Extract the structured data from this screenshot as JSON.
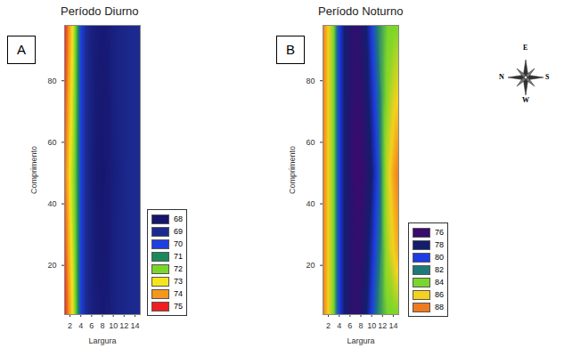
{
  "chart_data": [
    {
      "type": "heatmap",
      "title": "Período Diurno",
      "annotations": [
        "A"
      ],
      "xlabel": "Largura",
      "ylabel": "Comprimento",
      "xlim": [
        1,
        15
      ],
      "ylim": [
        4,
        98
      ],
      "xticks": [
        2,
        4,
        6,
        8,
        10,
        12,
        14
      ],
      "yticks": [
        20,
        40,
        60,
        80
      ],
      "x": [
        1,
        2,
        3,
        4,
        5,
        6,
        7,
        8,
        9,
        10,
        11,
        12,
        13,
        14,
        15
      ],
      "y": [
        4,
        25,
        50,
        75,
        98
      ],
      "z": [
        [
          75,
          73.8,
          72,
          70,
          69,
          68.5,
          68.3,
          68.2,
          68.3,
          68.5,
          68.7,
          68.8,
          68.9,
          69,
          69
        ],
        [
          74.8,
          73.4,
          71.9,
          70,
          69,
          68.5,
          68.2,
          68.1,
          68.2,
          68.5,
          68.7,
          68.8,
          68.9,
          69,
          69
        ],
        [
          74.5,
          73,
          71.8,
          70,
          69,
          68.4,
          68.1,
          68,
          68.2,
          68.4,
          68.6,
          68.8,
          68.9,
          69,
          69
        ],
        [
          74.8,
          73.4,
          71.9,
          70,
          69,
          68.5,
          68.2,
          68.1,
          68.2,
          68.5,
          68.7,
          68.8,
          68.9,
          69,
          69
        ],
        [
          75,
          73.8,
          72,
          70,
          69,
          68.5,
          68.3,
          68.2,
          68.3,
          68.5,
          68.7,
          68.8,
          68.9,
          69,
          69
        ]
      ],
      "colorbar": {
        "values": [
          68,
          69,
          70,
          71,
          72,
          73,
          74,
          75
        ],
        "colors": [
          "#16166e",
          "#1c2a90",
          "#1f3fe0",
          "#1a8a5a",
          "#7ad62a",
          "#f5e51e",
          "#f5961e",
          "#f01e1e"
        ]
      }
    },
    {
      "type": "heatmap",
      "title": "Período Noturno",
      "annotations": [
        "B",
        "E",
        "N",
        "S",
        "W"
      ],
      "xlabel": "Largura",
      "ylabel": "Comprimento",
      "xlim": [
        1,
        15
      ],
      "ylim": [
        4,
        98
      ],
      "xticks": [
        2,
        4,
        6,
        8,
        10,
        12,
        14
      ],
      "yticks": [
        20,
        40,
        60,
        80
      ],
      "x": [
        1,
        2,
        3,
        4,
        5,
        6,
        7,
        8,
        9,
        10,
        11,
        12,
        13,
        14,
        15
      ],
      "y": [
        4,
        25,
        50,
        75,
        98
      ],
      "z": [
        [
          88,
          86,
          84,
          80,
          78,
          77,
          76.5,
          77,
          78,
          80,
          82,
          83,
          84,
          84,
          84
        ],
        [
          88,
          86,
          84,
          80,
          78,
          77,
          76.5,
          76.5,
          77.5,
          79,
          81,
          83,
          85,
          86,
          87
        ],
        [
          88,
          86,
          84,
          80,
          78,
          77,
          76,
          76,
          77,
          78,
          80,
          83,
          85.5,
          87,
          88
        ],
        [
          88,
          86,
          84,
          80,
          78,
          77,
          76.5,
          76.5,
          77.5,
          79,
          81,
          83,
          84.5,
          85.5,
          86
        ],
        [
          88,
          86,
          84,
          80,
          78,
          77,
          76.5,
          77,
          78,
          80,
          82,
          83,
          84,
          84,
          84
        ]
      ],
      "colorbar": {
        "values": [
          76,
          78,
          80,
          82,
          84,
          86,
          88
        ],
        "colors": [
          "#3a0a6e",
          "#141e6e",
          "#1e3ce6",
          "#1e7a7a",
          "#7ad62a",
          "#f5d21e",
          "#f07a1e"
        ]
      }
    }
  ]
}
